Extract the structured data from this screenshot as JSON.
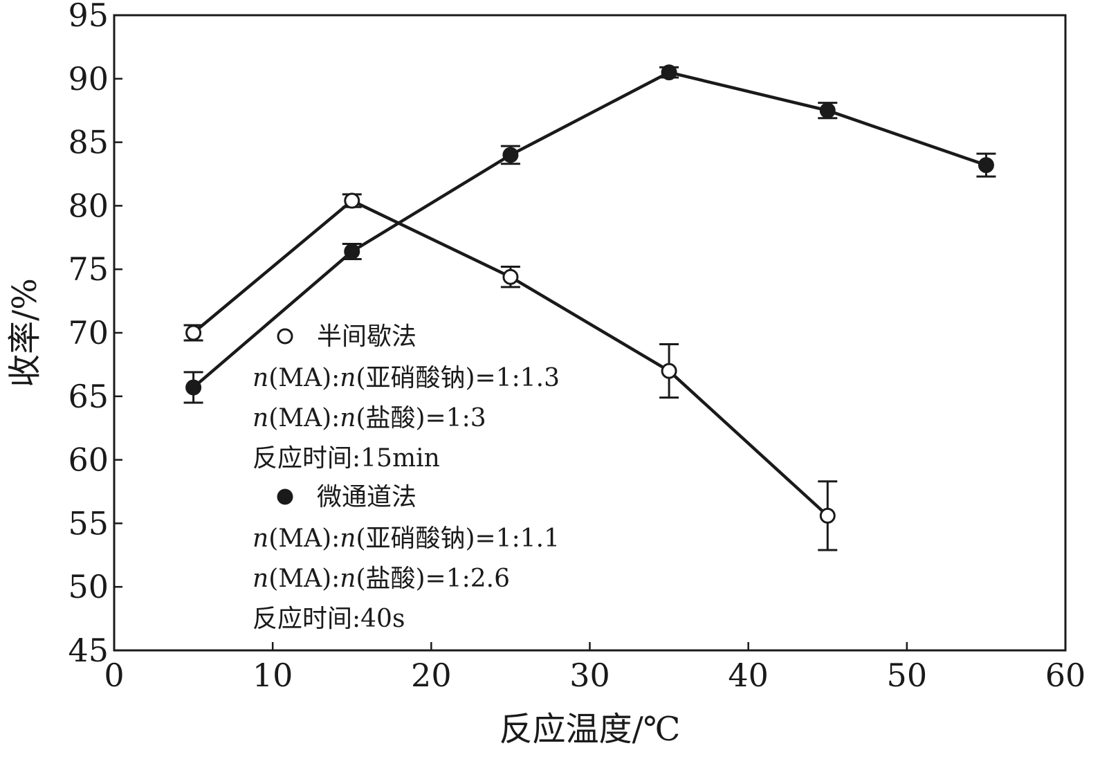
{
  "chart_data": {
    "type": "line",
    "title": "",
    "xlabel": "反应温度/℃",
    "ylabel": "收率/%",
    "xlim": [
      0,
      60
    ],
    "ylim": [
      45,
      95
    ],
    "xticks": [
      0,
      10,
      20,
      30,
      40,
      50,
      60
    ],
    "yticks": [
      45,
      50,
      55,
      60,
      65,
      70,
      75,
      80,
      85,
      90,
      95
    ],
    "grid": false,
    "legend_position": "center-left",
    "series": [
      {
        "name": "半间歇法",
        "marker": "open-circle",
        "x": [
          5,
          15,
          25,
          35,
          45
        ],
        "y": [
          70.0,
          80.4,
          74.4,
          67.0,
          55.6
        ],
        "error": [
          0.6,
          0.5,
          0.8,
          2.1,
          2.7
        ],
        "conditions": [
          {
            "p": "n",
            "a": "(MA):",
            "q": "n",
            "b": "(亚硝酸钠)=1:1.3"
          },
          {
            "p": "n",
            "a": "(MA):",
            "q": "n",
            "b": "(盐酸)=1:3"
          },
          {
            "p": "",
            "a": "反应时间:15min",
            "q": "",
            "b": ""
          }
        ]
      },
      {
        "name": "微通道法",
        "marker": "filled-circle",
        "x": [
          5,
          15,
          25,
          35,
          45,
          55
        ],
        "y": [
          65.7,
          76.4,
          84.0,
          90.5,
          87.5,
          83.2
        ],
        "error": [
          1.2,
          0.6,
          0.7,
          0.4,
          0.6,
          0.9
        ],
        "conditions": [
          {
            "p": "n",
            "a": "(MA):",
            "q": "n",
            "b": "(亚硝酸钠)=1:1.1"
          },
          {
            "p": "n",
            "a": "(MA):",
            "q": "n",
            "b": "(盐酸)=1:2.6"
          },
          {
            "p": "",
            "a": "反应时间:40s",
            "q": "",
            "b": ""
          }
        ]
      }
    ],
    "colors": {
      "line": "#1a1a1a",
      "background": "#ffffff"
    }
  }
}
